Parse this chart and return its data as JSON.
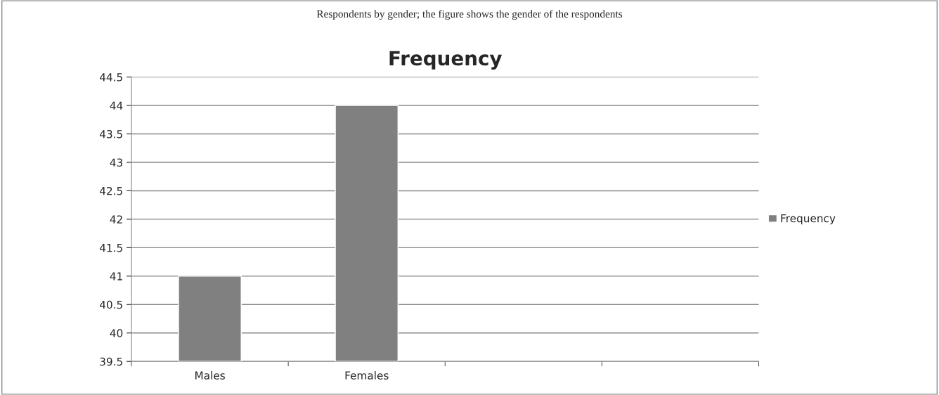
{
  "chart_data": {
    "type": "bar",
    "title": "Frequency",
    "annotations": [
      "Respondents by gender; the figure shows the gender of the respondents"
    ],
    "categories": [
      "Males",
      "Females",
      null,
      null
    ],
    "series": [
      {
        "name": "Frequency",
        "color": "#808080",
        "values": [
          41,
          44,
          null,
          null
        ]
      }
    ],
    "ylim": [
      39.5,
      44.5
    ],
    "yticks": [
      39.5,
      40,
      40.5,
      41,
      41.5,
      42,
      42.5,
      43,
      43.5,
      44,
      44.5
    ],
    "grid": "y",
    "legend": "right"
  }
}
